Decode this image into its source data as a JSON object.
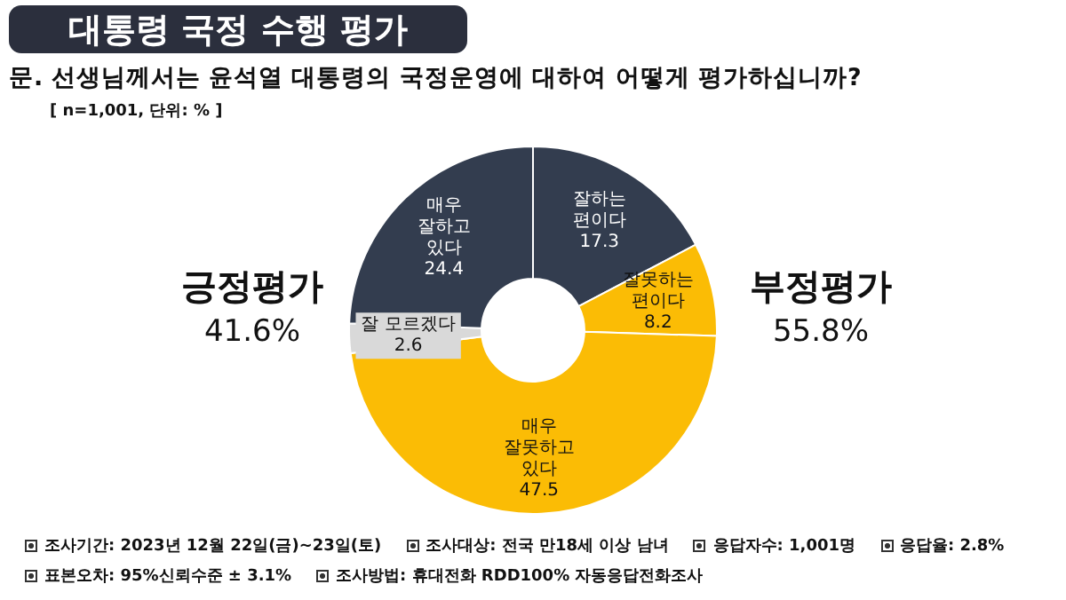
{
  "chart_data": {
    "type": "donut",
    "title": "대통령 국정 수행 평가",
    "subtitle": "문. 선생님께서는 윤석열 대통령의 국정운영에 대하여 어떻게 평가하십니까?",
    "categories": [
      "잘하는\n편이다",
      "잘못하는\n편이다",
      "매우\n잘못하고\n있다",
      "잘 모르겠다",
      "매우\n잘하고\n있다"
    ],
    "values": [
      17.3,
      8.2,
      47.5,
      2.6,
      24.4
    ],
    "colors": [
      "#333d4f",
      "#fbbc05",
      "#fbbc05",
      "#d9d9d9",
      "#333d4f"
    ],
    "data_labels": true,
    "legend": false,
    "annotations": [
      "[ n=1,001, 단위: % ]",
      "긍정평가",
      "41.6%",
      "부정평가",
      "55.8%",
      "조사기간: 2023년 12월 22일(금)~23일(토)",
      "조사대상: 전국 만18세 이상 남녀",
      "응답자수: 1,001명",
      "응답율: 2.8%",
      "표본오차: 95%신뢰수준 ± 3.1%",
      "조사방법: 휴대전화 RDD100% 자동응답전화조사"
    ]
  }
}
